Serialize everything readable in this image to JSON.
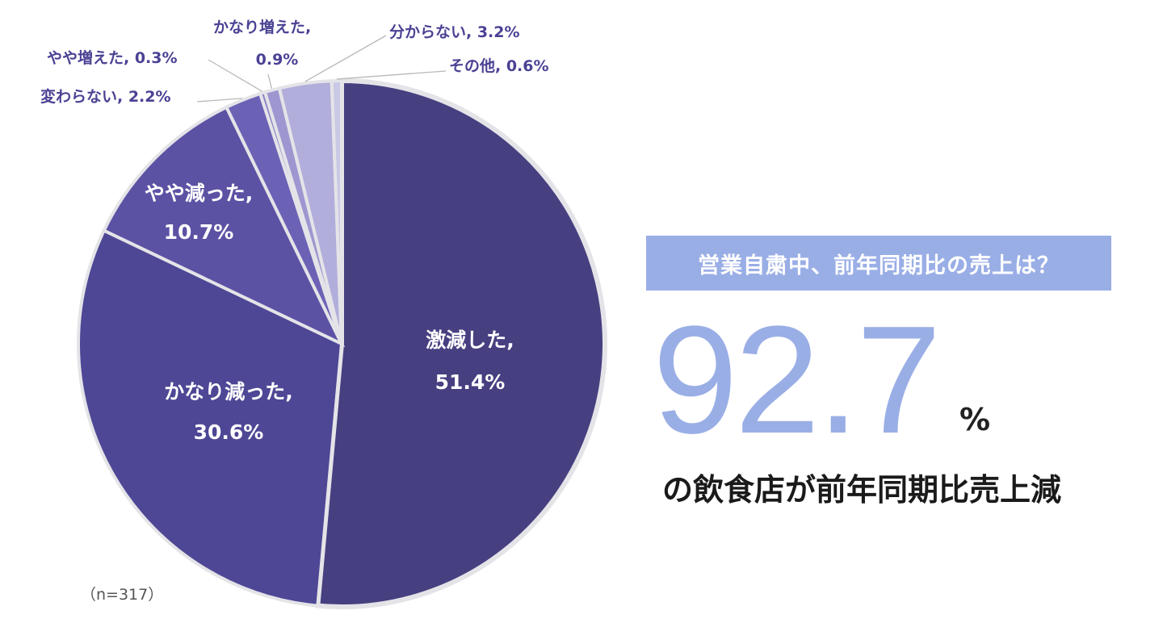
{
  "chart_data": {
    "type": "pie",
    "sample_size": "（n=317）",
    "slices": [
      {
        "label": "激減した,",
        "value": 51.4,
        "value_text": "51.4%",
        "color": "#463f80"
      },
      {
        "label": "かなり減った,",
        "value": 30.6,
        "value_text": "30.6%",
        "color": "#4d4795"
      },
      {
        "label": "やや減った,",
        "value": 10.7,
        "value_text": "10.7%",
        "color": "#5b52a4"
      },
      {
        "label": "変わらない,",
        "value": 2.2,
        "value_text": "2.2%",
        "color": "#6b62b6"
      },
      {
        "label": "やや増えた,",
        "value": 0.3,
        "value_text": "0.3%",
        "color": "#8a82c6"
      },
      {
        "label": "かなり増えた,",
        "value": 0.9,
        "value_text": "0.9%",
        "color": "#9d96d0"
      },
      {
        "label": "分からない,",
        "value": 3.2,
        "value_text": "3.2%",
        "color": "#b2aedb"
      },
      {
        "label": "その他,",
        "value": 0.6,
        "value_text": "0.6%",
        "color": "#c9c8e6"
      }
    ]
  },
  "callout": {
    "question": "営業自粛中、前年同期比の売上は？",
    "big_number": "92.7",
    "unit": "%",
    "headline": "の飲食店が前年同期比売上減",
    "accent_color": "#9aaee6"
  }
}
